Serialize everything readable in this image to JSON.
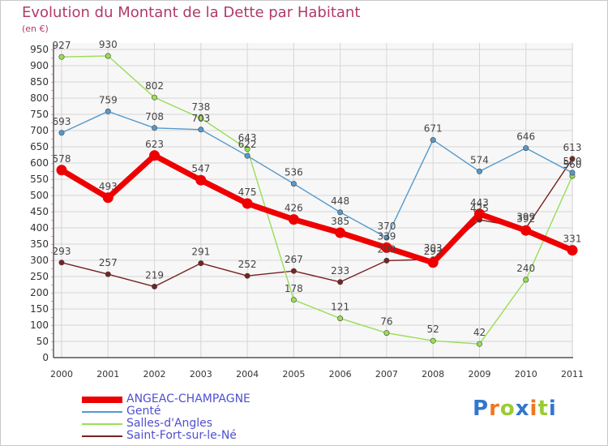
{
  "chart_data": {
    "type": "line",
    "title": "Evolution du Montant de la Dette par Habitant",
    "subtitle": "(en €)",
    "categories": [
      "2000",
      "2001",
      "2002",
      "2003",
      "2004",
      "2005",
      "2006",
      "2007",
      "2008",
      "2009",
      "2010",
      "2011"
    ],
    "ylim": [
      0,
      950
    ],
    "yticks": [
      0,
      50,
      100,
      150,
      200,
      250,
      300,
      350,
      400,
      450,
      500,
      550,
      600,
      650,
      700,
      750,
      800,
      850,
      900,
      950
    ],
    "grid": true,
    "legend_position": "bottom-left",
    "series": [
      {
        "name": "ANGEAC-CHAMPAGNE",
        "color": "#ee0000",
        "values": [
          578,
          493,
          623,
          547,
          475,
          426,
          385,
          339,
          293,
          443,
          392,
          331
        ]
      },
      {
        "name": "Genté",
        "color": "#5599cc",
        "values": [
          693,
          759,
          708,
          703,
          622,
          536,
          448,
          370,
          671,
          574,
          646,
          570
        ]
      },
      {
        "name": "Salles-d'Angles",
        "color": "#99dd55",
        "values": [
          927,
          930,
          802,
          738,
          643,
          178,
          121,
          76,
          52,
          42,
          240,
          560
        ]
      },
      {
        "name": "Saint-Fort-sur-le-Né",
        "color": "#772222",
        "values": [
          293,
          257,
          219,
          291,
          252,
          267,
          233,
          299,
          303,
          425,
          399,
          613
        ]
      }
    ]
  },
  "logo": {
    "text": "Proxiti",
    "letters": [
      "P",
      "r",
      "o",
      "x",
      "i",
      "t",
      "i"
    ],
    "colors": [
      "#3377cc",
      "#ee7722",
      "#99cc33",
      "#3377cc",
      "#ee7722",
      "#99cc33",
      "#3377cc"
    ]
  }
}
